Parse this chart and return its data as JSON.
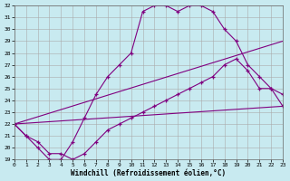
{
  "xlabel": "Windchill (Refroidissement éolien,°C)",
  "bg_color": "#c8eaf0",
  "line_color": "#800080",
  "grid_color": "#aaaaaa",
  "line1_x": [
    0,
    1,
    2,
    3,
    4,
    5,
    6,
    7,
    8,
    9,
    10,
    11,
    12,
    13,
    14,
    15,
    16,
    17,
    18,
    19,
    20,
    21,
    22,
    23
  ],
  "line1_y": [
    22,
    21,
    20,
    19,
    19,
    20.5,
    22.5,
    24.5,
    26,
    27,
    28,
    31.5,
    32,
    32,
    31.5,
    32,
    32,
    31.5,
    30,
    29,
    27,
    26,
    25,
    24.5
  ],
  "line2_x": [
    0,
    1,
    2,
    3,
    4,
    5,
    6,
    7,
    8,
    9,
    10,
    11,
    12,
    13,
    14,
    15,
    16,
    17,
    18,
    19,
    20,
    21,
    22,
    23
  ],
  "line2_y": [
    22,
    21,
    20.5,
    19.5,
    19.5,
    19,
    19.5,
    20.5,
    21.5,
    22,
    22.5,
    23,
    23.5,
    24,
    24.5,
    25,
    25.5,
    26,
    27,
    27.5,
    26.5,
    25,
    25,
    23.5
  ],
  "line3_x": [
    0,
    23
  ],
  "line3_y": [
    22,
    23.5
  ],
  "line4_x": [
    0,
    23
  ],
  "line4_y": [
    22,
    29
  ],
  "xlim": [
    0,
    23
  ],
  "ylim": [
    19,
    32
  ],
  "xticks": [
    0,
    1,
    2,
    3,
    4,
    5,
    6,
    7,
    8,
    9,
    10,
    11,
    12,
    13,
    14,
    15,
    16,
    17,
    18,
    19,
    20,
    21,
    22,
    23
  ],
  "yticks": [
    19,
    20,
    21,
    22,
    23,
    24,
    25,
    26,
    27,
    28,
    29,
    30,
    31,
    32
  ]
}
